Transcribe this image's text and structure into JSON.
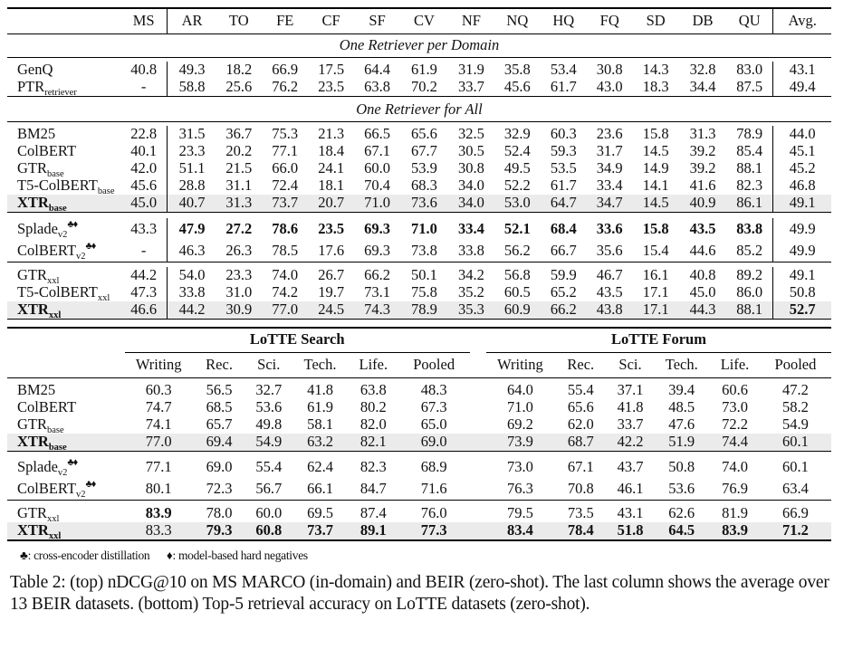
{
  "top_table": {
    "columns": [
      "MS",
      "AR",
      "TO",
      "FE",
      "CF",
      "SF",
      "CV",
      "NF",
      "NQ",
      "HQ",
      "FQ",
      "SD",
      "DB",
      "QU",
      "Avg."
    ],
    "sections": {
      "per_domain": "One Retriever per Domain",
      "for_all": "One Retriever for All"
    },
    "rows": {
      "genq": {
        "name": "GenQ",
        "sub": "",
        "sup": "",
        "values": [
          "40.8",
          "49.3",
          "18.2",
          "66.9",
          "17.5",
          "64.4",
          "61.9",
          "31.9",
          "35.8",
          "53.4",
          "30.8",
          "14.3",
          "32.8",
          "83.0",
          "43.1"
        ]
      },
      "ptr": {
        "name": "PTR",
        "sub": "retriever",
        "sup": "",
        "values": [
          "-",
          "58.8",
          "25.6",
          "76.2",
          "23.5",
          "63.8",
          "70.2",
          "33.7",
          "45.6",
          "61.7",
          "43.0",
          "18.3",
          "34.4",
          "87.5",
          "49.4"
        ]
      },
      "bm25": {
        "name": "BM25",
        "sub": "",
        "sup": "",
        "values": [
          "22.8",
          "31.5",
          "36.7",
          "75.3",
          "21.3",
          "66.5",
          "65.6",
          "32.5",
          "32.9",
          "60.3",
          "23.6",
          "15.8",
          "31.3",
          "78.9",
          "44.0"
        ]
      },
      "colbert": {
        "name": "ColBERT",
        "sub": "",
        "sup": "",
        "values": [
          "40.1",
          "23.3",
          "20.2",
          "77.1",
          "18.4",
          "67.1",
          "67.7",
          "30.5",
          "52.4",
          "59.3",
          "31.7",
          "14.5",
          "39.2",
          "85.4",
          "45.1"
        ]
      },
      "gtr_base": {
        "name": "GTR",
        "sub": "base",
        "sup": "",
        "values": [
          "42.0",
          "51.1",
          "21.5",
          "66.0",
          "24.1",
          "60.0",
          "53.9",
          "30.8",
          "49.5",
          "53.5",
          "34.9",
          "14.9",
          "39.2",
          "88.1",
          "45.2"
        ]
      },
      "t5c_base": {
        "name": "T5-ColBERT",
        "sub": "base",
        "sup": "",
        "values": [
          "45.6",
          "28.8",
          "31.1",
          "72.4",
          "18.1",
          "70.4",
          "68.3",
          "34.0",
          "52.2",
          "61.7",
          "33.4",
          "14.1",
          "41.6",
          "82.3",
          "46.8"
        ]
      },
      "xtr_base": {
        "name": "XTR",
        "sub": "base",
        "sup": "",
        "values": [
          "45.0",
          "40.7",
          "31.3",
          "73.7",
          "20.7",
          "71.0",
          "73.6",
          "34.0",
          "53.0",
          "64.7",
          "34.7",
          "14.5",
          "40.9",
          "86.1",
          "49.1"
        ]
      },
      "splade": {
        "name": "Splade",
        "sub": "v2",
        "sup": "♣♦",
        "values": [
          "43.3",
          "47.9",
          "27.2",
          "78.6",
          "23.5",
          "69.3",
          "71.0",
          "33.4",
          "52.1",
          "68.4",
          "33.6",
          "15.8",
          "43.5",
          "83.8",
          "49.9"
        ]
      },
      "colbertv2": {
        "name": "ColBERT",
        "sub": "v2",
        "sup": "♣♦",
        "values": [
          "-",
          "46.3",
          "26.3",
          "78.5",
          "17.6",
          "69.3",
          "73.8",
          "33.8",
          "56.2",
          "66.7",
          "35.6",
          "15.4",
          "44.6",
          "85.2",
          "49.9"
        ]
      },
      "gtr_xxl": {
        "name": "GTR",
        "sub": "xxl",
        "sup": "",
        "values": [
          "44.2",
          "54.0",
          "23.3",
          "74.0",
          "26.7",
          "66.2",
          "50.1",
          "34.2",
          "56.8",
          "59.9",
          "46.7",
          "16.1",
          "40.8",
          "89.2",
          "49.1"
        ]
      },
      "t5c_xxl": {
        "name": "T5-ColBERT",
        "sub": "xxl",
        "sup": "",
        "values": [
          "47.3",
          "33.8",
          "31.0",
          "74.2",
          "19.7",
          "73.1",
          "75.8",
          "35.2",
          "60.5",
          "65.2",
          "43.5",
          "17.1",
          "45.0",
          "86.0",
          "50.8"
        ]
      },
      "xtr_xxl": {
        "name": "XTR",
        "sub": "xxl",
        "sup": "",
        "values": [
          "46.6",
          "44.2",
          "30.9",
          "77.0",
          "24.5",
          "74.3",
          "78.9",
          "35.3",
          "60.9",
          "66.2",
          "43.8",
          "17.1",
          "44.3",
          "88.1",
          "52.7"
        ]
      }
    }
  },
  "bottom_table": {
    "groups": [
      "LoTTE Search",
      "LoTTE Forum"
    ],
    "columns": [
      "Writing",
      "Rec.",
      "Sci.",
      "Tech.",
      "Life.",
      "Pooled"
    ],
    "rows": {
      "bm25": {
        "name": "BM25",
        "sub": "",
        "sup": "",
        "search": [
          "60.3",
          "56.5",
          "32.7",
          "41.8",
          "63.8",
          "48.3"
        ],
        "forum": [
          "64.0",
          "55.4",
          "37.1",
          "39.4",
          "60.6",
          "47.2"
        ]
      },
      "colbert": {
        "name": "ColBERT",
        "sub": "",
        "sup": "",
        "search": [
          "74.7",
          "68.5",
          "53.6",
          "61.9",
          "80.2",
          "67.3"
        ],
        "forum": [
          "71.0",
          "65.6",
          "41.8",
          "48.5",
          "73.0",
          "58.2"
        ]
      },
      "gtr_base": {
        "name": "GTR",
        "sub": "base",
        "sup": "",
        "search": [
          "74.1",
          "65.7",
          "49.8",
          "58.1",
          "82.0",
          "65.0"
        ],
        "forum": [
          "69.2",
          "62.0",
          "33.7",
          "47.6",
          "72.2",
          "54.9"
        ]
      },
      "xtr_base": {
        "name": "XTR",
        "sub": "base",
        "sup": "",
        "search": [
          "77.0",
          "69.4",
          "54.9",
          "63.2",
          "82.1",
          "69.0"
        ],
        "forum": [
          "73.9",
          "68.7",
          "42.2",
          "51.9",
          "74.4",
          "60.1"
        ]
      },
      "splade": {
        "name": "Splade",
        "sub": "v2",
        "sup": "♣♦",
        "search": [
          "77.1",
          "69.0",
          "55.4",
          "62.4",
          "82.3",
          "68.9"
        ],
        "forum": [
          "73.0",
          "67.1",
          "43.7",
          "50.8",
          "74.0",
          "60.1"
        ]
      },
      "colbertv2": {
        "name": "ColBERT",
        "sub": "v2",
        "sup": "♣♦",
        "search": [
          "80.1",
          "72.3",
          "56.7",
          "66.1",
          "84.7",
          "71.6"
        ],
        "forum": [
          "76.3",
          "70.8",
          "46.1",
          "53.6",
          "76.9",
          "63.4"
        ]
      },
      "gtr_xxl": {
        "name": "GTR",
        "sub": "xxl",
        "sup": "",
        "search": [
          "83.9",
          "78.0",
          "60.0",
          "69.5",
          "87.4",
          "76.0"
        ],
        "forum": [
          "79.5",
          "73.5",
          "43.1",
          "62.6",
          "81.9",
          "66.9"
        ]
      },
      "xtr_xxl": {
        "name": "XTR",
        "sub": "xxl",
        "sup": "",
        "search": [
          "83.3",
          "79.3",
          "60.8",
          "73.7",
          "89.1",
          "77.3"
        ],
        "forum": [
          "83.4",
          "78.4",
          "51.8",
          "64.5",
          "83.9",
          "71.2"
        ]
      }
    }
  },
  "footnote": {
    "club_symbol": "♣",
    "club_text": ": cross-encoder distillation",
    "diamond_symbol": "♦",
    "diamond_text": ": model-based hard negatives"
  },
  "caption": "Table 2: (top) nDCG@10 on MS MARCO (in-domain) and BEIR (zero-shot). The last column shows the average over 13 BEIR datasets. (bottom) Top-5 retrieval accuracy on LoTTE datasets (zero-shot)."
}
